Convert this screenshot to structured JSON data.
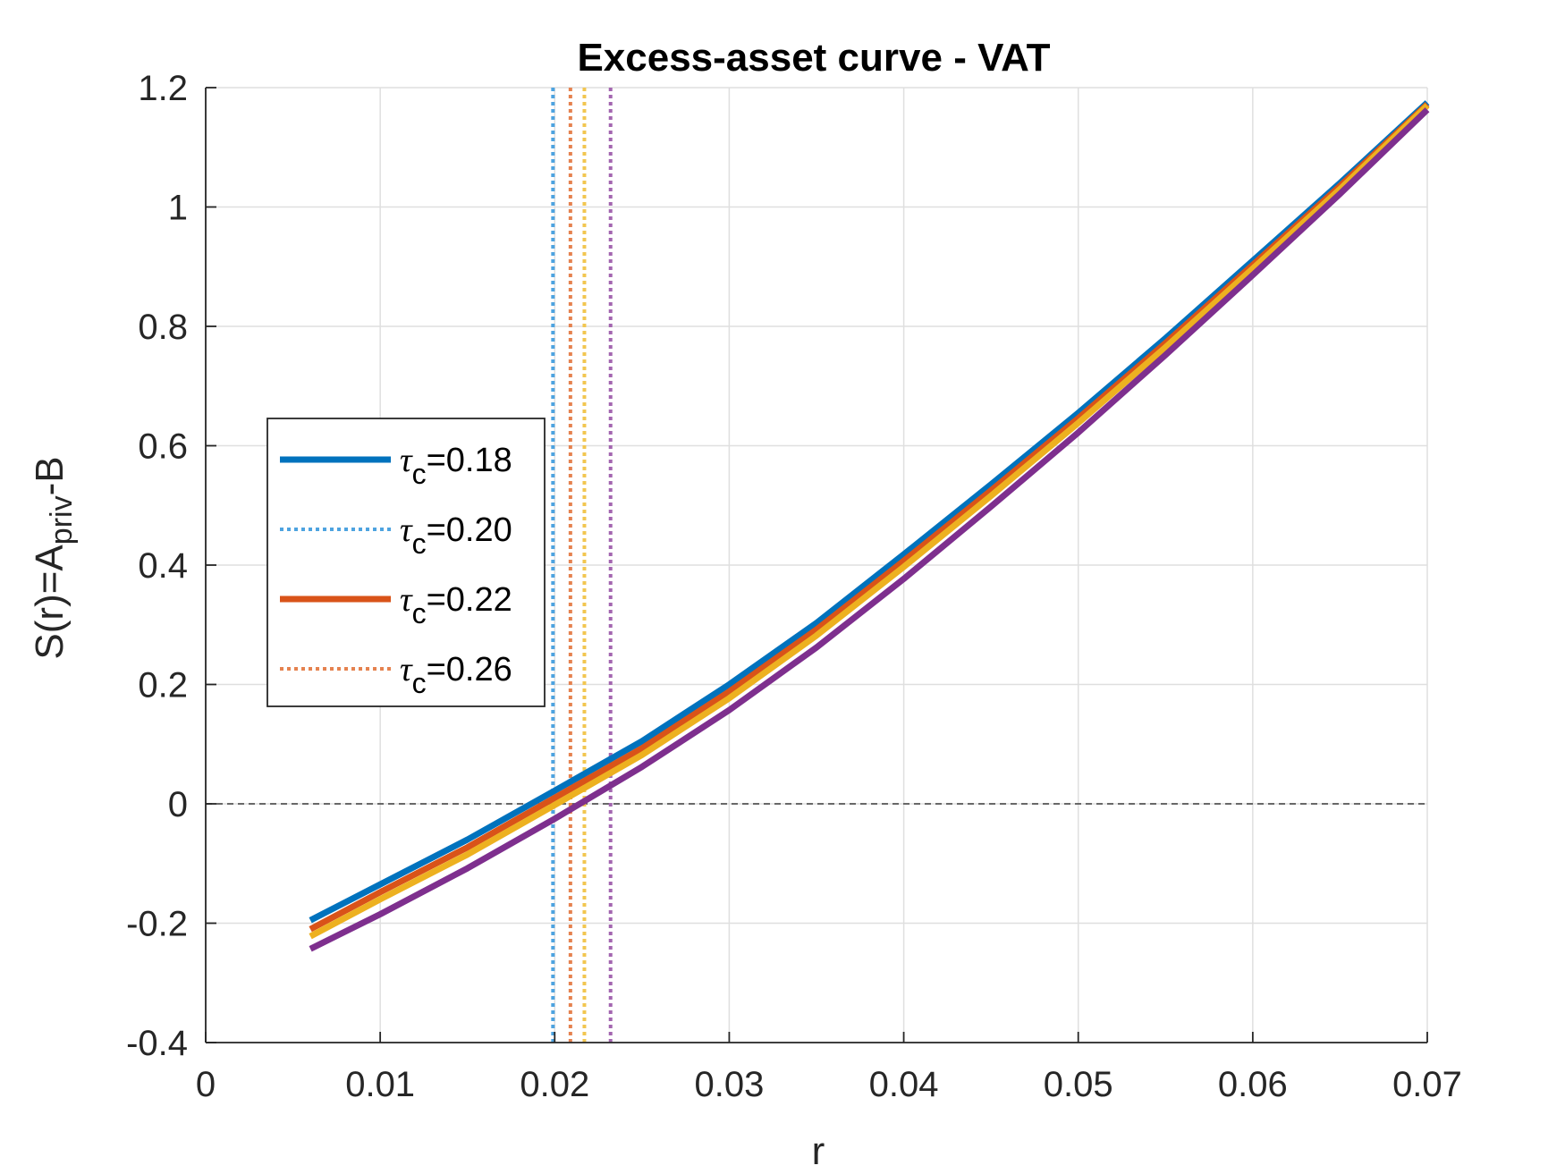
{
  "chart_data": {
    "type": "line",
    "title": "Excess-asset curve - VAT",
    "xlabel": "r",
    "ylabel_main": "S(r)=A",
    "ylabel_sub": "priv",
    "ylabel_tail": "-B",
    "xlim": [
      0,
      0.07
    ],
    "ylim": [
      -0.4,
      1.2
    ],
    "xticks": [
      0,
      0.01,
      0.02,
      0.03,
      0.04,
      0.05,
      0.06,
      0.07
    ],
    "xtick_labels": [
      "0",
      "0.01",
      "0.02",
      "0.03",
      "0.04",
      "0.05",
      "0.06",
      "0.07"
    ],
    "yticks": [
      -0.4,
      -0.2,
      0,
      0.2,
      0.4,
      0.6,
      0.8,
      1.0,
      1.2
    ],
    "ytick_labels": [
      "-0.4",
      "-0.2",
      "0",
      "0.2",
      "0.4",
      "0.6",
      "0.8",
      "1",
      "1.2"
    ],
    "grid": true,
    "legend_position": "middle-left",
    "zero_line": 0,
    "series": [
      {
        "name": "=0.18",
        "color": "#0072BD",
        "style": "solid",
        "x": [
          0.006,
          0.01,
          0.015,
          0.02,
          0.025,
          0.03,
          0.035,
          0.04,
          0.045,
          0.05,
          0.055,
          0.06,
          0.065,
          0.07
        ],
        "y": [
          -0.195,
          -0.135,
          -0.06,
          0.022,
          0.105,
          0.2,
          0.303,
          0.418,
          0.535,
          0.655,
          0.78,
          0.91,
          1.04,
          1.175
        ]
      },
      {
        "name": "",
        "color": "#D95319",
        "style": "solid",
        "x": [
          0.006,
          0.01,
          0.015,
          0.02,
          0.025,
          0.03,
          0.035,
          0.04,
          0.045,
          0.05,
          0.055,
          0.06,
          0.065,
          0.07
        ],
        "y": [
          -0.21,
          -0.148,
          -0.073,
          0.01,
          0.093,
          0.188,
          0.292,
          0.407,
          0.525,
          0.646,
          0.772,
          0.903,
          1.035,
          1.172
        ]
      },
      {
        "name": "",
        "color": "#EDB120",
        "style": "solid",
        "x": [
          0.006,
          0.01,
          0.015,
          0.02,
          0.025,
          0.03,
          0.035,
          0.04,
          0.045,
          0.05,
          0.055,
          0.06,
          0.065,
          0.07
        ],
        "y": [
          -0.222,
          -0.16,
          -0.085,
          -0.002,
          0.082,
          0.177,
          0.282,
          0.397,
          0.516,
          0.638,
          0.765,
          0.897,
          1.03,
          1.17
        ]
      },
      {
        "name": "",
        "color": "#7E2F8E",
        "style": "solid",
        "x": [
          0.006,
          0.01,
          0.015,
          0.02,
          0.025,
          0.03,
          0.035,
          0.04,
          0.045,
          0.05,
          0.055,
          0.06,
          0.065,
          0.07
        ],
        "y": [
          -0.243,
          -0.185,
          -0.108,
          -0.025,
          0.062,
          0.157,
          0.262,
          0.377,
          0.498,
          0.622,
          0.752,
          0.886,
          1.022,
          1.163
        ]
      }
    ],
    "vlines": [
      {
        "name": "=0.20",
        "x": 0.0199,
        "color": "#4DA3E0",
        "style": "dotted"
      },
      {
        "name": "=0.26",
        "x": 0.0209,
        "color": "#E5824F",
        "style": "dotted"
      },
      {
        "name": "",
        "x": 0.0217,
        "color": "#F2C650",
        "style": "dotted"
      },
      {
        "name": "",
        "x": 0.0232,
        "color": "#A366B0",
        "style": "dotted"
      }
    ],
    "legend": [
      {
        "label": "=0.18",
        "color": "#0072BD",
        "style": "solid"
      },
      {
        "label": "=0.20",
        "color": "#4DA3E0",
        "style": "dotted"
      },
      {
        "label": "=0.22",
        "color": "#D95319",
        "style": "solid"
      },
      {
        "label": "=0.26",
        "color": "#E5824F",
        "style": "dotted"
      }
    ],
    "legend_symbol": "τ",
    "legend_subscript": "c"
  }
}
